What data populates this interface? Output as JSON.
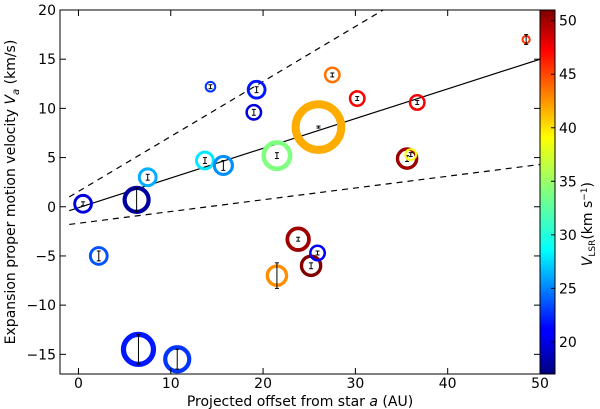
{
  "chart_data": {
    "type": "scatter",
    "title": "",
    "xlabel": "Projected offset from star a (AU)",
    "ylabel": "Expansion proper motion velocity V_a (km/s)",
    "xlabel_parts": {
      "main": "Projected offset from star ",
      "italic": "a",
      "tail": " (AU)"
    },
    "ylabel_parts": {
      "main": "Expansion proper motion velocity ",
      "italic": "V",
      "sub": "a",
      "tail": " (km/s)"
    },
    "xlim": [
      -2,
      50
    ],
    "ylim": [
      -17,
      20
    ],
    "xticks": [
      0,
      10,
      20,
      30,
      40,
      50
    ],
    "yticks": [
      -15,
      -10,
      -5,
      0,
      5,
      10,
      15,
      20
    ],
    "colorbar": {
      "label_main": "V",
      "label_sub": "LSR",
      "label_unit": "(km s",
      "label_exp": "−1",
      "label_close": ")",
      "range": [
        17,
        51
      ],
      "ticks": [
        20,
        25,
        30,
        35,
        40,
        45,
        50
      ],
      "colormap": "jet"
    },
    "lines": [
      {
        "name": "fit",
        "style": "solid",
        "x": [
          -1,
          50
        ],
        "y": [
          -0.4,
          15.0
        ]
      },
      {
        "name": "upper bound",
        "style": "dashed",
        "x": [
          -1,
          33
        ],
        "y": [
          1.0,
          20.0
        ]
      },
      {
        "name": "lower bound",
        "style": "dashed",
        "x": [
          -1,
          50
        ],
        "y": [
          -1.8,
          4.3
        ]
      }
    ],
    "points": [
      {
        "x": 0.5,
        "y": 0.3,
        "err": 0.2,
        "vlsr": 20,
        "size": 1.4
      },
      {
        "x": 6.3,
        "y": 0.7,
        "err": 1.2,
        "vlsr": 18,
        "size": 2.0
      },
      {
        "x": 7.5,
        "y": 3.0,
        "err": 0.3,
        "vlsr": 27,
        "size": 1.4
      },
      {
        "x": 2.2,
        "y": -5.0,
        "err": 0.5,
        "vlsr": 24,
        "size": 1.4
      },
      {
        "x": 6.5,
        "y": -14.5,
        "err": 1.5,
        "vlsr": 22,
        "size": 2.5
      },
      {
        "x": 10.7,
        "y": -15.5,
        "err": 1.0,
        "vlsr": 23,
        "size": 2.0
      },
      {
        "x": 14.3,
        "y": 12.2,
        "err": 0.2,
        "vlsr": 23,
        "size": 0.8
      },
      {
        "x": 13.7,
        "y": 4.7,
        "err": 0.3,
        "vlsr": 29,
        "size": 1.4
      },
      {
        "x": 15.7,
        "y": 4.2,
        "err": 0.5,
        "vlsr": 26,
        "size": 1.5
      },
      {
        "x": 19.3,
        "y": 11.9,
        "err": 0.3,
        "vlsr": 22,
        "size": 1.4
      },
      {
        "x": 19.0,
        "y": 9.6,
        "err": 0.3,
        "vlsr": 20,
        "size": 1.2
      },
      {
        "x": 21.5,
        "y": 5.2,
        "err": 0.3,
        "vlsr": 34,
        "size": 2.2
      },
      {
        "x": 21.5,
        "y": -7.0,
        "err": 1.3,
        "vlsr": 42,
        "size": 1.6
      },
      {
        "x": 23.8,
        "y": -3.3,
        "err": 0.2,
        "vlsr": 50,
        "size": 1.8
      },
      {
        "x": 25.2,
        "y": -6.0,
        "err": 0.3,
        "vlsr": 51,
        "size": 1.6
      },
      {
        "x": 25.9,
        "y": -4.7,
        "err": 0.2,
        "vlsr": 21,
        "size": 1.2
      },
      {
        "x": 26.0,
        "y": 8.1,
        "err": 0.1,
        "vlsr": 41,
        "size": 3.8
      },
      {
        "x": 27.5,
        "y": 13.4,
        "err": 0.2,
        "vlsr": 43,
        "size": 1.2
      },
      {
        "x": 30.2,
        "y": 11.0,
        "err": 0.2,
        "vlsr": 47,
        "size": 1.2
      },
      {
        "x": 35.6,
        "y": 4.9,
        "err": 0.3,
        "vlsr": 50,
        "size": 1.6
      },
      {
        "x": 36.0,
        "y": 5.3,
        "err": 0.2,
        "vlsr": 38,
        "size": 0.9
      },
      {
        "x": 36.7,
        "y": 10.6,
        "err": 0.2,
        "vlsr": 47,
        "size": 1.2
      },
      {
        "x": 48.5,
        "y": 17.0,
        "err": 0.5,
        "vlsr": 45,
        "size": 0.6
      }
    ]
  }
}
